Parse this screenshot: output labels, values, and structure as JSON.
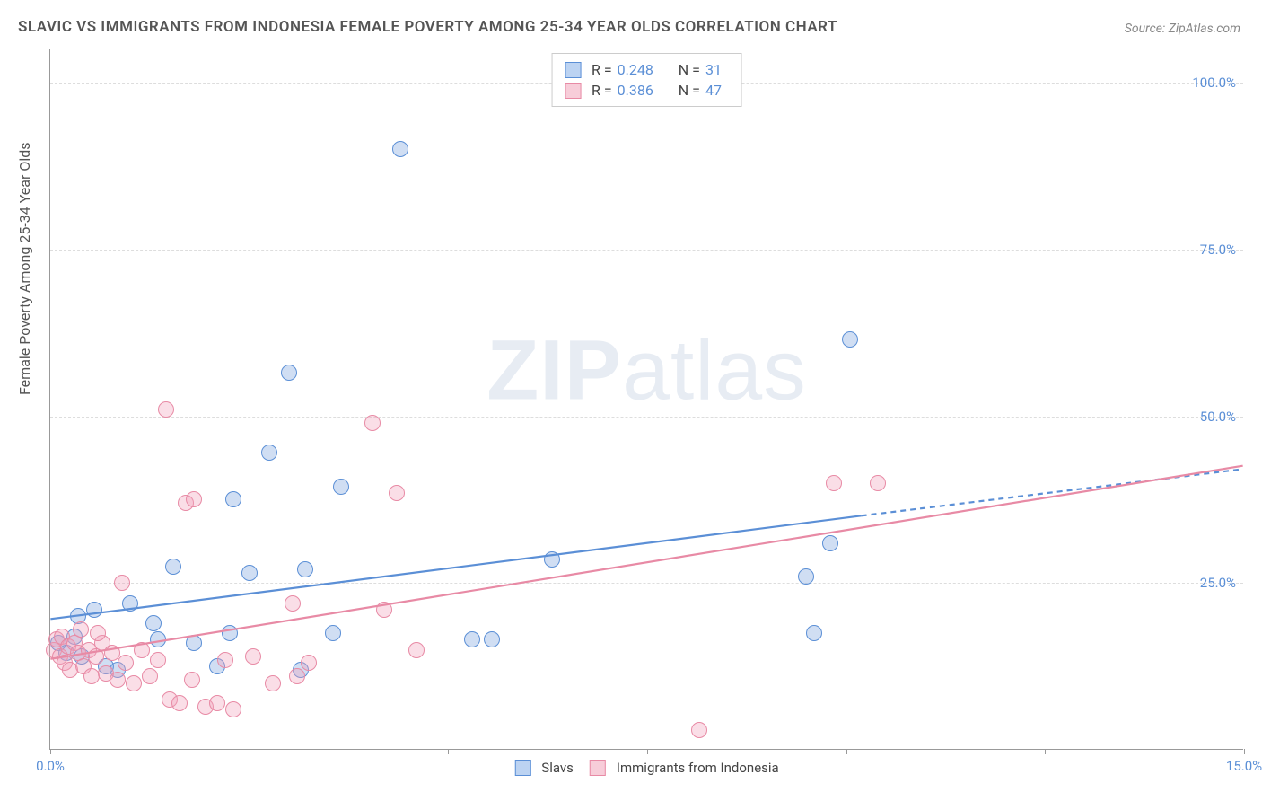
{
  "title": "SLAVIC VS IMMIGRANTS FROM INDONESIA FEMALE POVERTY AMONG 25-34 YEAR OLDS CORRELATION CHART",
  "source": "Source: ZipAtlas.com",
  "watermark": {
    "bold": "ZIP",
    "rest": "atlas"
  },
  "chart": {
    "type": "scatter",
    "xlim": [
      0,
      15
    ],
    "ylim": [
      0,
      105
    ],
    "x_ticks": [
      0,
      2.5,
      5,
      7.5,
      10,
      12.5,
      15
    ],
    "x_tick_labels": {
      "0": "0.0%",
      "15": "15.0%"
    },
    "y_gridlines": [
      25,
      50,
      75,
      100
    ],
    "y_labels": {
      "25": "25.0%",
      "50": "50.0%",
      "75": "75.0%",
      "100": "100.0%"
    },
    "y_axis_title": "Female Poverty Among 25-34 Year Olds",
    "background_color": "#ffffff",
    "grid_color": "#dddddd",
    "axis_color": "#999999",
    "tick_label_color": "#5b8fd6",
    "point_radius": 9,
    "point_stroke_width": 1.5,
    "point_fill_opacity": 0.35,
    "trend_line_width": 2.2,
    "series": [
      {
        "key": "slavs",
        "name": "Slavs",
        "color_stroke": "#5b8fd6",
        "color_fill": "rgba(120,160,220,0.35)",
        "swatch_fill": "#bcd3f2",
        "swatch_border": "#5b8fd6",
        "stats": {
          "R": "0.248",
          "N": "31"
        },
        "trend": {
          "x1": 0,
          "y1": 19.5,
          "x2": 10.2,
          "y2": 35.0,
          "x2_dash": 15,
          "y2_dash": 42.0
        },
        "points": [
          {
            "x": 0.1,
            "y": 16.0
          },
          {
            "x": 0.2,
            "y": 14.5
          },
          {
            "x": 0.3,
            "y": 17.0
          },
          {
            "x": 0.35,
            "y": 20.0
          },
          {
            "x": 0.4,
            "y": 14.0
          },
          {
            "x": 0.55,
            "y": 21.0
          },
          {
            "x": 0.7,
            "y": 12.5
          },
          {
            "x": 0.85,
            "y": 12.0
          },
          {
            "x": 1.0,
            "y": 22.0
          },
          {
            "x": 1.3,
            "y": 19.0
          },
          {
            "x": 1.35,
            "y": 16.5
          },
          {
            "x": 1.55,
            "y": 27.5
          },
          {
            "x": 1.8,
            "y": 16.0
          },
          {
            "x": 2.1,
            "y": 12.5
          },
          {
            "x": 2.25,
            "y": 17.5
          },
          {
            "x": 2.3,
            "y": 37.5
          },
          {
            "x": 2.75,
            "y": 44.5
          },
          {
            "x": 2.5,
            "y": 26.5
          },
          {
            "x": 3.0,
            "y": 56.5
          },
          {
            "x": 3.15,
            "y": 12.0
          },
          {
            "x": 3.2,
            "y": 27.0
          },
          {
            "x": 3.55,
            "y": 17.5
          },
          {
            "x": 3.65,
            "y": 39.5
          },
          {
            "x": 4.4,
            "y": 90.0
          },
          {
            "x": 5.3,
            "y": 16.5
          },
          {
            "x": 5.55,
            "y": 16.5
          },
          {
            "x": 6.3,
            "y": 28.5
          },
          {
            "x": 9.5,
            "y": 26.0
          },
          {
            "x": 9.6,
            "y": 17.5
          },
          {
            "x": 9.8,
            "y": 31.0
          },
          {
            "x": 10.05,
            "y": 61.5
          }
        ]
      },
      {
        "key": "indonesia",
        "name": "Immigrants from Indonesia",
        "color_stroke": "#e88aa5",
        "color_fill": "rgba(240,160,185,0.35)",
        "swatch_fill": "#f7cdd9",
        "swatch_border": "#e88aa5",
        "stats": {
          "R": "0.386",
          "N": "47"
        },
        "trend": {
          "x1": 0,
          "y1": 13.5,
          "x2": 15,
          "y2": 42.5
        },
        "points": [
          {
            "x": 0.05,
            "y": 15.0
          },
          {
            "x": 0.08,
            "y": 16.5
          },
          {
            "x": 0.12,
            "y": 14.0
          },
          {
            "x": 0.15,
            "y": 17.0
          },
          {
            "x": 0.18,
            "y": 13.0
          },
          {
            "x": 0.22,
            "y": 15.5
          },
          {
            "x": 0.25,
            "y": 12.0
          },
          {
            "x": 0.3,
            "y": 16.0
          },
          {
            "x": 0.35,
            "y": 14.5
          },
          {
            "x": 0.38,
            "y": 18.0
          },
          {
            "x": 0.42,
            "y": 12.5
          },
          {
            "x": 0.48,
            "y": 15.0
          },
          {
            "x": 0.52,
            "y": 11.0
          },
          {
            "x": 0.58,
            "y": 14.0
          },
          {
            "x": 0.65,
            "y": 16.0
          },
          {
            "x": 0.7,
            "y": 11.5
          },
          {
            "x": 0.78,
            "y": 14.5
          },
          {
            "x": 0.85,
            "y": 10.5
          },
          {
            "x": 0.9,
            "y": 25.0
          },
          {
            "x": 0.95,
            "y": 13.0
          },
          {
            "x": 1.05,
            "y": 10.0
          },
          {
            "x": 1.15,
            "y": 15.0
          },
          {
            "x": 1.25,
            "y": 11.0
          },
          {
            "x": 1.35,
            "y": 13.5
          },
          {
            "x": 1.45,
            "y": 51.0
          },
          {
            "x": 1.5,
            "y": 7.5
          },
          {
            "x": 1.62,
            "y": 7.0
          },
          {
            "x": 1.7,
            "y": 37.0
          },
          {
            "x": 1.78,
            "y": 10.5
          },
          {
            "x": 1.8,
            "y": 37.5
          },
          {
            "x": 1.95,
            "y": 6.5
          },
          {
            "x": 2.1,
            "y": 7.0
          },
          {
            "x": 2.2,
            "y": 13.5
          },
          {
            "x": 2.3,
            "y": 6.0
          },
          {
            "x": 2.55,
            "y": 14.0
          },
          {
            "x": 2.8,
            "y": 10.0
          },
          {
            "x": 3.05,
            "y": 22.0
          },
          {
            "x": 3.1,
            "y": 11.0
          },
          {
            "x": 3.25,
            "y": 13.0
          },
          {
            "x": 4.05,
            "y": 49.0
          },
          {
            "x": 4.2,
            "y": 21.0
          },
          {
            "x": 4.35,
            "y": 38.5
          },
          {
            "x": 4.6,
            "y": 15.0
          },
          {
            "x": 8.15,
            "y": 3.0
          },
          {
            "x": 9.85,
            "y": 40.0
          },
          {
            "x": 10.4,
            "y": 40.0
          },
          {
            "x": 0.6,
            "y": 17.5
          }
        ]
      }
    ]
  },
  "legend_stats_labels": {
    "R": "R =",
    "N": "N ="
  }
}
